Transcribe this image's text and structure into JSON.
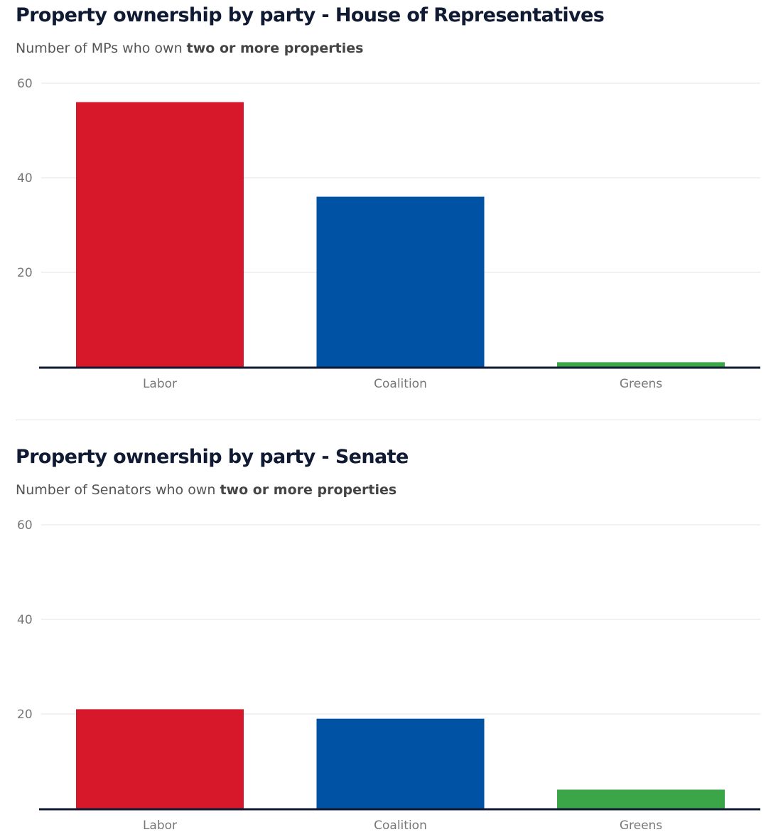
{
  "chart_data": [
    {
      "type": "bar",
      "title": "Property ownership by party - House of Representatives",
      "subtitle_prefix": "Number of MPs who own ",
      "subtitle_bold": "two or more properties",
      "categories": [
        "Labor",
        "Coalition",
        "Greens"
      ],
      "values": [
        56,
        36,
        1
      ],
      "colors": [
        "#d7182a",
        "#0052a5",
        "#3aa648"
      ],
      "ylim": [
        0,
        60
      ],
      "yticks": [
        20,
        40,
        60
      ],
      "grid": true,
      "xlabel": "",
      "ylabel": ""
    },
    {
      "type": "bar",
      "title": "Property ownership by party - Senate",
      "subtitle_prefix": "Number of Senators who own ",
      "subtitle_bold": "two or more properties",
      "categories": [
        "Labor",
        "Coalition",
        "Greens"
      ],
      "values": [
        21,
        19,
        4
      ],
      "colors": [
        "#d7182a",
        "#0052a5",
        "#3aa648"
      ],
      "ylim": [
        0,
        60
      ],
      "yticks": [
        20,
        40,
        60
      ],
      "grid": true,
      "xlabel": "",
      "ylabel": ""
    }
  ]
}
